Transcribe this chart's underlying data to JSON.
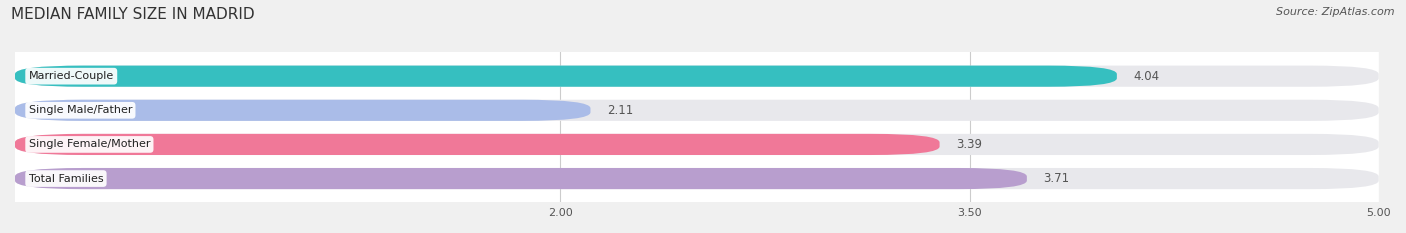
{
  "title": "MEDIAN FAMILY SIZE IN MADRID",
  "source": "Source: ZipAtlas.com",
  "categories": [
    "Married-Couple",
    "Single Male/Father",
    "Single Female/Mother",
    "Total Families"
  ],
  "values": [
    4.04,
    2.11,
    3.39,
    3.71
  ],
  "bar_colors": [
    "#36bfc0",
    "#aabce8",
    "#f07898",
    "#b89ece"
  ],
  "bar_labels": [
    "4.04",
    "2.11",
    "3.39",
    "3.71"
  ],
  "xlim_min": 0,
  "xlim_max": 5.0,
  "xticks": [
    2.0,
    3.5,
    5.0
  ],
  "xtick_labels": [
    "2.00",
    "3.50",
    "5.00"
  ],
  "outer_bg": "#f0f0f0",
  "inner_bg": "#ffffff",
  "bar_track_color": "#e8e8ec",
  "title_fontsize": 11,
  "label_fontsize": 8,
  "value_fontsize": 8.5,
  "source_fontsize": 8,
  "bar_height": 0.62,
  "bar_gap": 0.38
}
